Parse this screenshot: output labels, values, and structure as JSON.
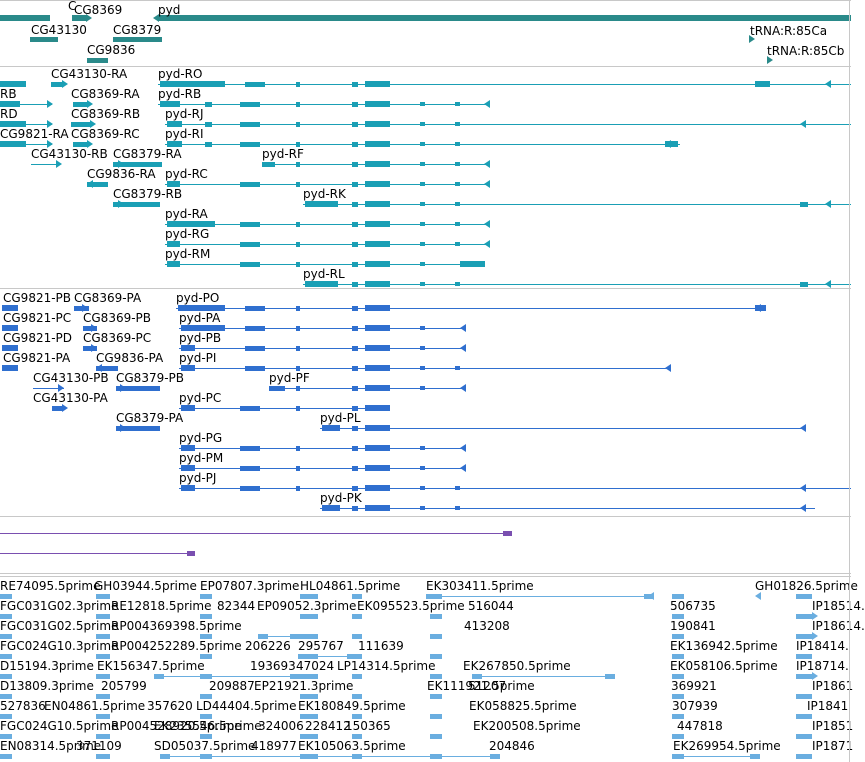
{
  "colors": {
    "gene": "#2a8a8a",
    "transcript_a": "#1a9fb5",
    "transcript_b": "#2f6fcf",
    "misc": "#7a4fb0",
    "est": "#6aaee0",
    "separator": "#c8c8c8"
  },
  "tracks": {
    "genes": {
      "labels": [
        "CG8369",
        "pyd",
        "CG43130",
        "CG8379",
        "CG9836",
        "tRNA:R:85Ca",
        "tRNA:R:85Cb"
      ]
    },
    "transcripts_a": {
      "labels": [
        "C",
        "CG43130-RA",
        "pyd-RO",
        "RB",
        "CG8369-RA",
        "pyd-RB",
        "RD",
        "CG8369-RB",
        "pyd-RJ",
        "CG9821-RA",
        "CG8369-RC",
        "pyd-RI",
        "CG43130-RB",
        "CG8379-RA",
        "pyd-RF",
        "CG9836-RA",
        "pyd-RC",
        "CG8379-RB",
        "pyd-RK",
        "pyd-RA",
        "pyd-RG",
        "pyd-RM",
        "pyd-RL"
      ]
    },
    "transcripts_b": {
      "labels": [
        "CG9821-PB",
        "CG8369-PA",
        "pyd-PO",
        "CG9821-PC",
        "CG8369-PB",
        "pyd-PA",
        "CG9821-PD",
        "CG8369-PC",
        "pyd-PB",
        "CG9821-PA",
        "CG9836-PA",
        "pyd-PI",
        "CG43130-PB",
        "CG8379-PB",
        "pyd-PF",
        "CG43130-PA",
        "pyd-PC",
        "CG8379-PA",
        "pyd-PL",
        "pyd-PG",
        "pyd-PM",
        "pyd-PJ",
        "pyd-PK"
      ]
    },
    "est": {
      "labels": [
        "RE74095.5prime",
        "GH03944.5prime",
        "EP07807.3prime",
        "HL04861.5prime",
        "EK303411.5prime",
        "GH01826.5prime",
        "FGC031G02.3prime",
        "RE12818.5prime",
        "82344",
        "EP09052.3prime",
        "EK095523.5prime",
        "516044",
        "506735",
        "IP18514.",
        "FGC031G02.5prime",
        "RP004369398.5prime",
        "413208",
        "190841",
        "IP18614.",
        "FGC024G10.3prime",
        "RP004252289.5prime",
        "206226",
        "295767",
        "111639",
        "EK136942.5prime",
        "IP18414.",
        "D15194.3prime",
        "EK156347.5prime",
        "193693",
        "47024",
        "LP14314.5prime",
        "EK267850.5prime",
        "EK058106.5prime",
        "IP18714.",
        "D13809.3prime",
        "205799",
        "209887",
        "EP21921.3prime",
        "EK111921.5prime",
        "51207",
        "369921",
        "IP1861",
        "527836",
        "EN04861.5prime",
        "357620",
        "LD44404.5prime",
        "EK180849.5prime",
        "EK058825.5prime",
        "307939",
        "IP1841",
        "FGC024G10.5prime",
        "RP004528920.5prime",
        "EK235546.5prime",
        "324006",
        "228412",
        "150365",
        "EK200508.5prime",
        "447818",
        "IP1851",
        "EN08314.5prime",
        "371109",
        "418977",
        "EK105063.5prime",
        "204846",
        "SD05037.5prime",
        "EK269954.5prime",
        "IP1871"
      ]
    }
  }
}
